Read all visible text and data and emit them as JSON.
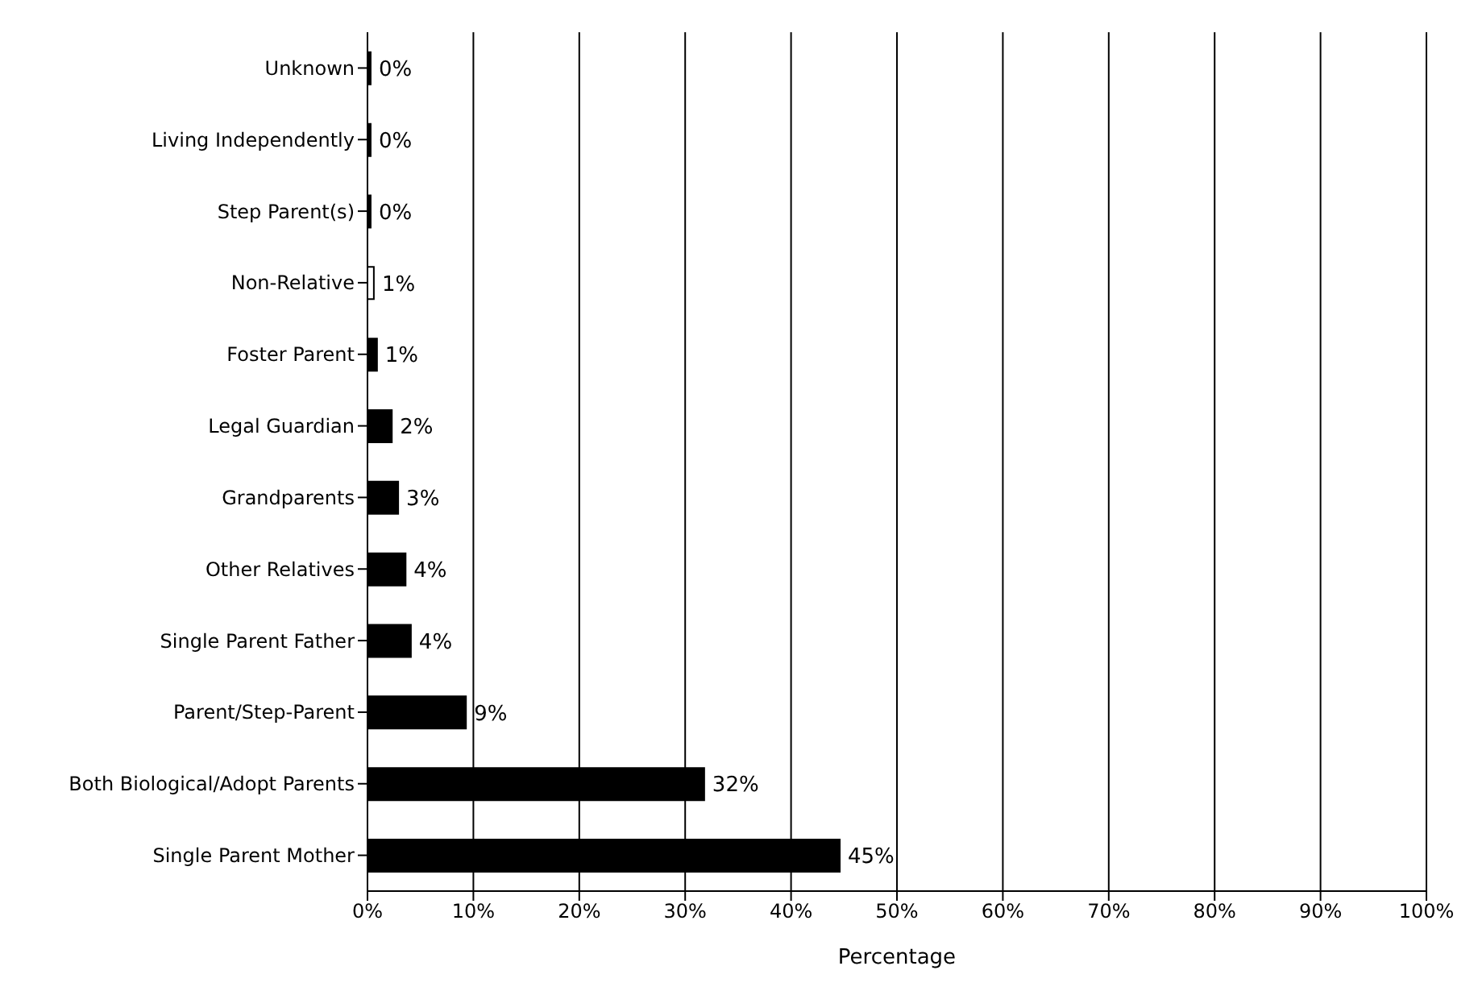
{
  "chart_data": {
    "type": "bar",
    "orientation": "horizontal",
    "xlabel": "Percentage",
    "categories": [
      "Unknown",
      "Living Independently",
      "Step Parent(s)",
      "Non-Relative",
      "Foster Parent",
      "Legal Guardian",
      "Grandparents",
      "Other Relatives",
      "Single Parent Father",
      "Parent/Step-Parent",
      "Both Biological/Adopt Parents",
      "Single Parent Mother"
    ],
    "values": [
      0.3,
      0.3,
      0.3,
      0.6,
      0.9,
      2.3,
      2.9,
      3.6,
      4.1,
      9.3,
      31.8,
      44.6
    ],
    "colors": [
      "#000000",
      "#000000",
      "#000000",
      "#ffffff",
      "#000000",
      "#000000",
      "#000000",
      "#000000",
      "#000000",
      "#000000",
      "#000000",
      "#000000"
    ],
    "value_labels": [
      "0%",
      "0%",
      "0%",
      "1%",
      "1%",
      "2%",
      "3%",
      "4%",
      "4%",
      "9%",
      "32%",
      "45%"
    ],
    "xlim": [
      0,
      100
    ],
    "xticks": [
      {
        "value": 0,
        "label": "0%"
      },
      {
        "value": 10,
        "label": "10%"
      },
      {
        "value": 20,
        "label": "20%"
      },
      {
        "value": 30,
        "label": "30%"
      },
      {
        "value": 40,
        "label": "40%"
      },
      {
        "value": 50,
        "label": "50%"
      },
      {
        "value": 60,
        "label": "60%"
      },
      {
        "value": 70,
        "label": "70%"
      },
      {
        "value": 80,
        "label": "80%"
      },
      {
        "value": 90,
        "label": "90%"
      },
      {
        "value": 100,
        "label": "100%"
      }
    ],
    "grid": "x",
    "legend": false
  }
}
